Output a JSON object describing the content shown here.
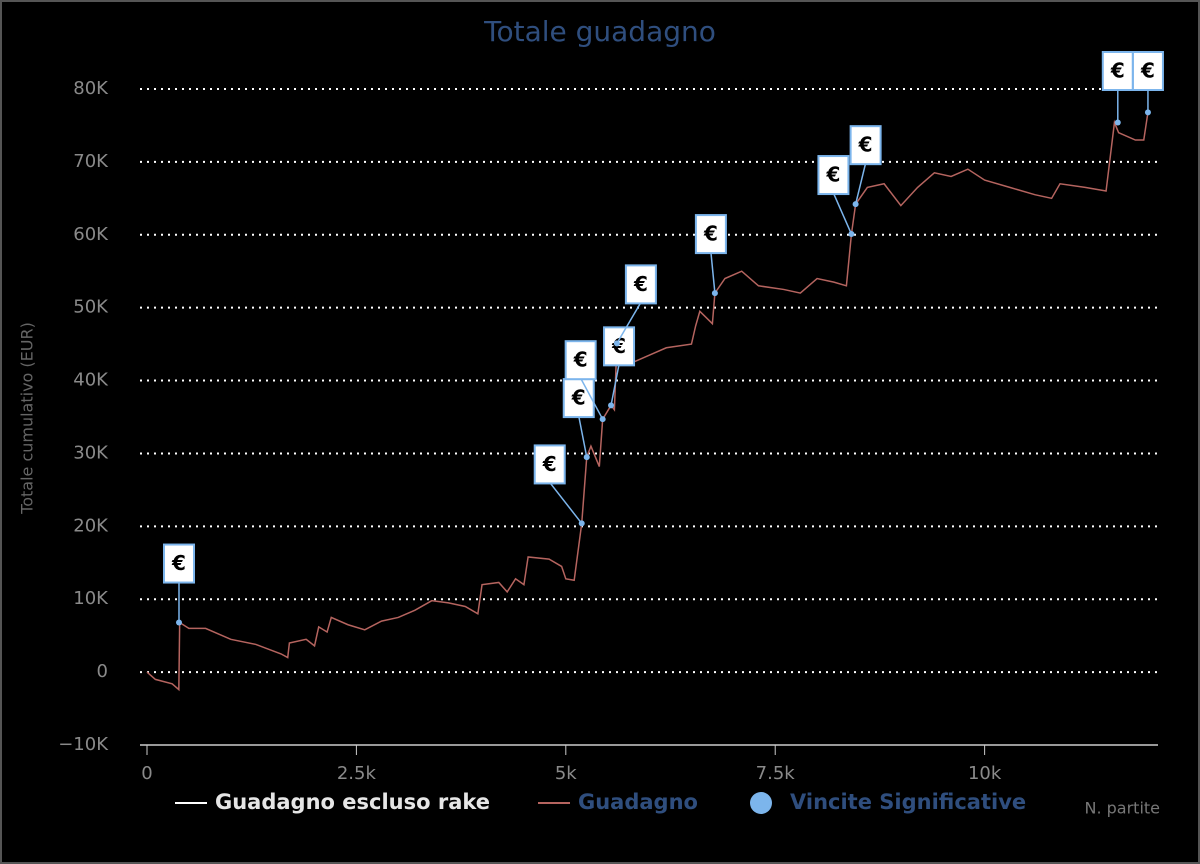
{
  "chart_data": {
    "type": "line",
    "title": "Totale guadagno",
    "y_label": "Totale cumulativo (EUR)",
    "x_label": "N. partite",
    "xlim": [
      0,
      12070
    ],
    "ylim": [
      -10000,
      80000
    ],
    "xticks": [
      0,
      {
        "value": 2500,
        "label": "2.5k"
      },
      {
        "value": 5000,
        "label": "5k"
      },
      {
        "value": 7500,
        "label": "7.5k"
      },
      {
        "value": 10000,
        "label": "10k"
      }
    ],
    "yticks": [
      {
        "value": -10000,
        "label": "−10K"
      },
      0,
      {
        "value": 10000,
        "label": "10K"
      },
      {
        "value": 20000,
        "label": "20K"
      },
      {
        "value": 30000,
        "label": "30K"
      },
      {
        "value": 40000,
        "label": "40K"
      },
      {
        "value": 50000,
        "label": "50K"
      },
      {
        "value": 60000,
        "label": "60K"
      },
      {
        "value": 70000,
        "label": "70K"
      },
      {
        "value": 80000,
        "label": "80K"
      }
    ],
    "grid": true,
    "series": [
      {
        "name": "Guadagno escluso rake",
        "color": "#ffffff"
      },
      {
        "name": "Guadagno",
        "color": "#b5645f",
        "x": [
          0,
          100,
          300,
          380,
          390,
          500,
          700,
          1000,
          1300,
          1600,
          1680,
          1700,
          1900,
          2000,
          2050,
          2150,
          2200,
          2400,
          2600,
          2800,
          3000,
          3200,
          3400,
          3600,
          3800,
          3950,
          4000,
          4200,
          4300,
          4400,
          4500,
          4550,
          4800,
          4950,
          5000,
          5100,
          5190,
          5250,
          5300,
          5400,
          5440,
          5540,
          5580,
          5610,
          5800,
          6000,
          6200,
          6500,
          6550,
          6600,
          6750,
          6780,
          6900,
          7100,
          7300,
          7600,
          7800,
          8000,
          8200,
          8350,
          8410,
          8460,
          8600,
          8800,
          9000,
          9200,
          9400,
          9600,
          9800,
          10000,
          10300,
          10600,
          10800,
          10900,
          11200,
          11450,
          11550,
          11600,
          11800,
          11900,
          11950
        ],
        "values": [
          0,
          -1000,
          -1600,
          -2400,
          6800,
          6000,
          6000,
          4500,
          3800,
          2500,
          2000,
          4000,
          4500,
          3600,
          6200,
          5500,
          7500,
          6500,
          5800,
          7000,
          7500,
          8500,
          9800,
          9500,
          9000,
          8000,
          12000,
          12300,
          11000,
          12800,
          12000,
          15800,
          15500,
          14500,
          12800,
          12600,
          20400,
          29500,
          31000,
          28200,
          34700,
          36600,
          36000,
          45100,
          42500,
          43500,
          44500,
          45000,
          47500,
          49500,
          47800,
          52000,
          54000,
          55000,
          53000,
          52500,
          52000,
          54000,
          53500,
          53000,
          60100,
          64200,
          66500,
          67000,
          64000,
          66500,
          68500,
          68000,
          69000,
          67500,
          66500,
          65500,
          65000,
          67000,
          66500,
          66000,
          75400,
          74000,
          73000,
          73000,
          76800
        ]
      },
      {
        "name": "Vincite Significative",
        "color": "#7cb5ec",
        "x": [
          382,
          5190,
          5250,
          5440,
          5540,
          5610,
          6780,
          8410,
          8460,
          11590,
          11950
        ],
        "values": [
          6800,
          20400,
          29500,
          34700,
          36600,
          45100,
          52000,
          60100,
          64200,
          75400,
          76800
        ],
        "labels": [
          "€",
          "€",
          "€",
          "€",
          "€",
          "€",
          "€",
          "€",
          "€",
          "€",
          "€"
        ]
      }
    ]
  }
}
